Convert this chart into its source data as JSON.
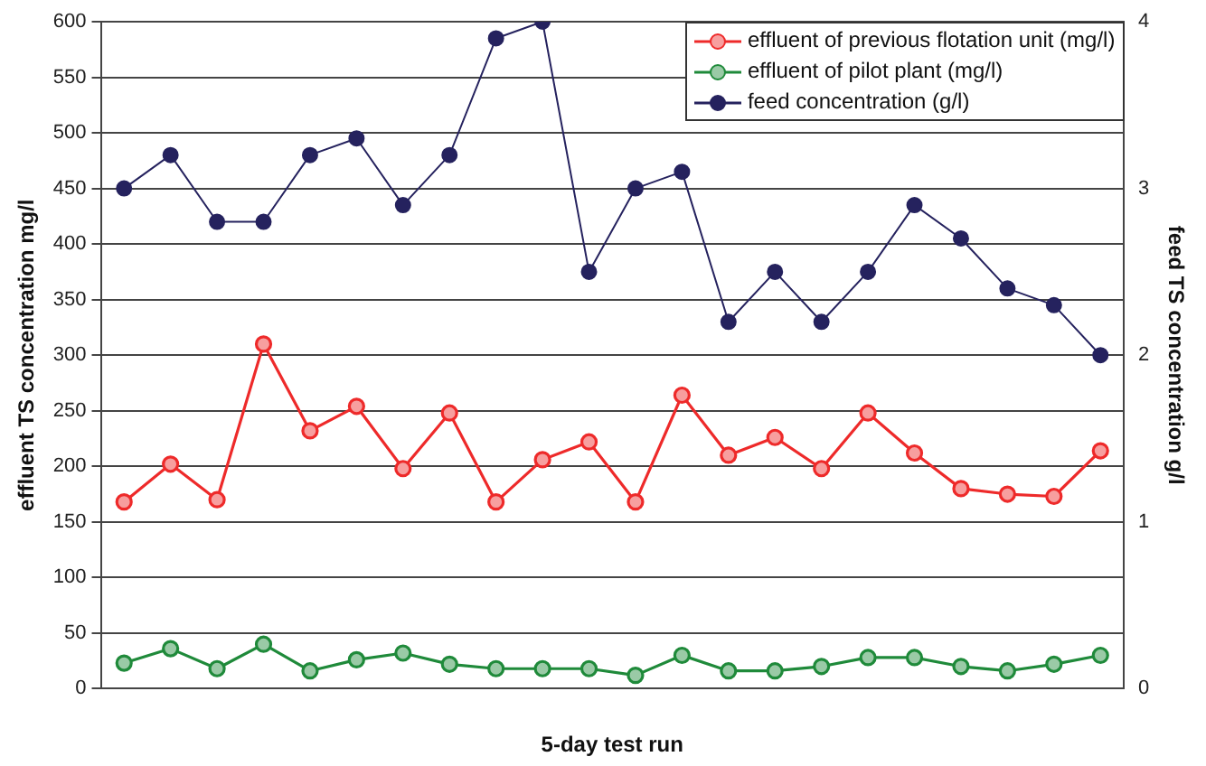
{
  "chart_data": {
    "type": "line",
    "xlabel": "5-day test run",
    "ylabel": "effluent TS concentration mg/l",
    "y2label": "feed TS concentration g/l",
    "categories": [
      null,
      null,
      null,
      null,
      null,
      null,
      null,
      null,
      null,
      null,
      null,
      null,
      null,
      null,
      null,
      null,
      null,
      null,
      null,
      null,
      null,
      null
    ],
    "series": [
      {
        "name": "effluent of previous flotation unit (mg/l)",
        "color": "#ee2a2a",
        "values": [
          168,
          202,
          170,
          310,
          232,
          254,
          198,
          248,
          168,
          206,
          222,
          168,
          264,
          210,
          226,
          198,
          248,
          212,
          180,
          175,
          173,
          214
        ]
      },
      {
        "name": "effluent of pilot plant (mg/l)",
        "color": "#1f8a3a",
        "values": [
          23,
          36,
          18,
          40,
          16,
          26,
          32,
          22,
          18,
          18,
          18,
          12,
          30,
          16,
          16,
          20,
          28,
          28,
          20,
          16,
          22,
          30
        ]
      },
      {
        "name": "feed concentration (g/l)",
        "color": "#25225e",
        "axis": "y2",
        "values": [
          3,
          3.2,
          2.8,
          2.8,
          3.2,
          3.3,
          2.9,
          3.2,
          3.9,
          4.0,
          2.5,
          3.0,
          3.1,
          2.2,
          2.5,
          2.2,
          2.5,
          2.9,
          2.7,
          2.4,
          2.3,
          2.0
        ]
      }
    ],
    "ylim": [
      0,
      600
    ],
    "yticks": [
      0,
      50,
      100,
      150,
      200,
      250,
      300,
      350,
      400,
      450,
      500,
      550,
      600
    ],
    "y2lim": [
      0,
      4
    ],
    "y2ticks": [
      0,
      1,
      2,
      3,
      4
    ],
    "grid": "y",
    "legend": "top right",
    "marker": "circle",
    "line_style": "solid"
  }
}
